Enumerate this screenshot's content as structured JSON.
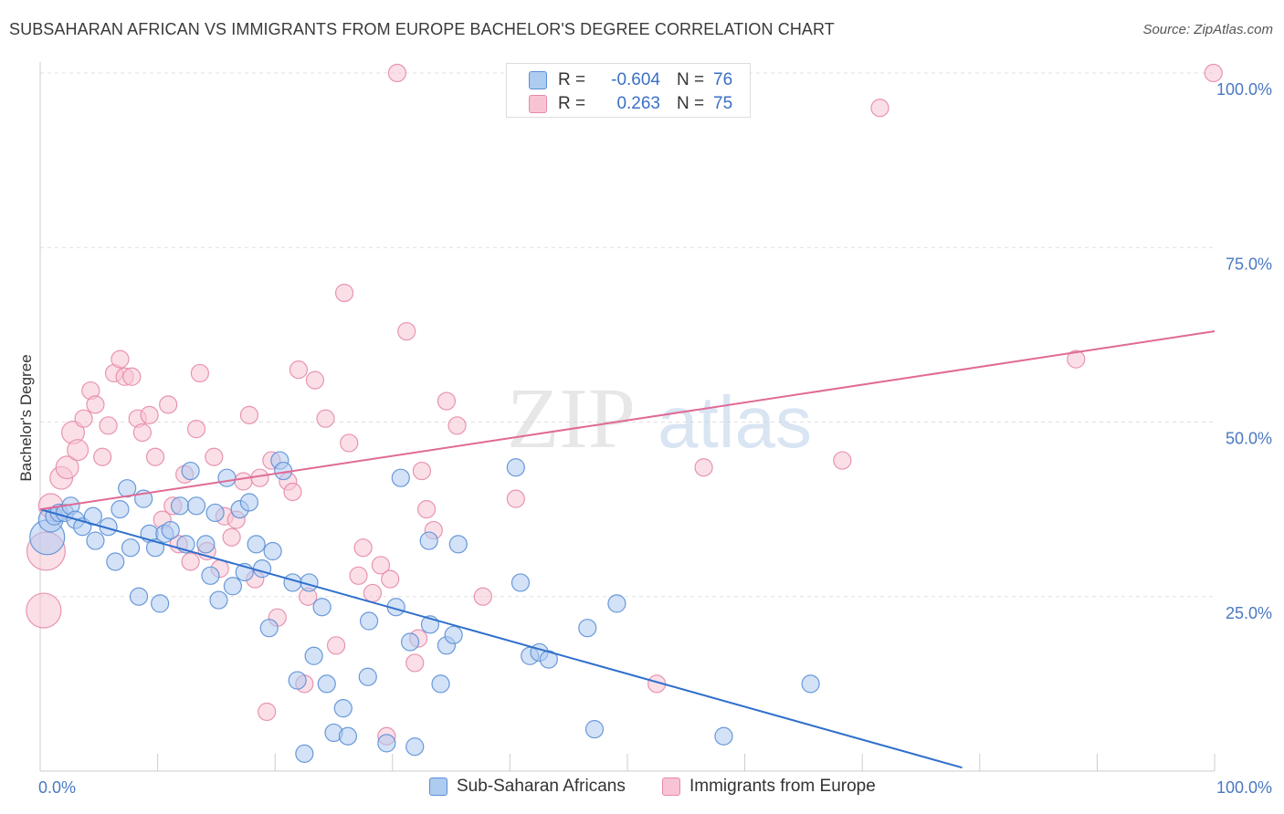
{
  "header": {
    "title": "SUBSAHARAN AFRICAN VS IMMIGRANTS FROM EUROPE BACHELOR'S DEGREE CORRELATION CHART",
    "source": "Source: ZipAtlas.com"
  },
  "watermark": {
    "zip": "ZIP",
    "atlas": "atlas"
  },
  "legend": {
    "rows": [
      {
        "r_label": "R =",
        "r_value": "-0.604",
        "n_label": "N =",
        "n_value": "76"
      },
      {
        "r_label": "R =",
        "r_value": "0.263",
        "n_label": "N =",
        "n_value": "75"
      }
    ]
  },
  "bottom_legend": {
    "items": [
      {
        "label": "Sub-Saharan Africans"
      },
      {
        "label": "Immigrants from Europe"
      }
    ]
  },
  "colors": {
    "blue_fill": "#aecbf0",
    "blue_stroke": "#5b8fd6",
    "blue_line": "#2f6fcc",
    "pink_fill": "#f8c4d4",
    "pink_stroke": "#e68aa8",
    "pink_line": "#e06a95",
    "tick_label": "#4a78c2",
    "grid": "#e0e0e0"
  },
  "chart_data": {
    "type": "scatter",
    "title": "SUBSAHARAN AFRICAN VS IMMIGRANTS FROM EUROPE BACHELOR'S DEGREE CORRELATION CHART",
    "xlabel": "",
    "ylabel": "Bachelor's Degree",
    "xlim": [
      0,
      100
    ],
    "ylim": [
      0,
      100
    ],
    "x_tick_labels": [
      "0.0%",
      "100.0%"
    ],
    "y_ticks": [
      {
        "value": 25,
        "label": "25.0%"
      },
      {
        "value": 50,
        "label": "50.0%"
      },
      {
        "value": 75,
        "label": "75.0%"
      },
      {
        "value": 100,
        "label": "100.0%"
      }
    ],
    "grid": true,
    "legend_position": "top-center",
    "series": [
      {
        "name": "Sub-Saharan Africans",
        "color": "#aecbf0",
        "r": -0.604,
        "n": 76,
        "trend": {
          "x": [
            0,
            78.5
          ],
          "y": [
            37.5,
            0.5
          ]
        },
        "points": [
          [
            0.6,
            33.5,
            2
          ],
          [
            0.9,
            36.0,
            1.4
          ],
          [
            1.2,
            36.5,
            1
          ],
          [
            1.6,
            37.0,
            1
          ],
          [
            2.1,
            37.0,
            1
          ],
          [
            2.6,
            38.0,
            1
          ],
          [
            3.0,
            36.0,
            1
          ],
          [
            3.6,
            35.0,
            1
          ],
          [
            4.5,
            36.5,
            1
          ],
          [
            4.7,
            33.0,
            1
          ],
          [
            5.8,
            35.0,
            1
          ],
          [
            6.4,
            30.0,
            1
          ],
          [
            6.8,
            37.5,
            1
          ],
          [
            7.4,
            40.5,
            1
          ],
          [
            7.7,
            32.0,
            1
          ],
          [
            8.4,
            25.0,
            1
          ],
          [
            8.8,
            39.0,
            1
          ],
          [
            9.3,
            34.0,
            1
          ],
          [
            9.8,
            32.0,
            1
          ],
          [
            10.2,
            24.0,
            1
          ],
          [
            10.6,
            34.0,
            1
          ],
          [
            11.1,
            34.5,
            1
          ],
          [
            11.9,
            38.0,
            1
          ],
          [
            12.4,
            32.5,
            1
          ],
          [
            12.8,
            43.0,
            1
          ],
          [
            13.3,
            38.0,
            1
          ],
          [
            14.1,
            32.5,
            1
          ],
          [
            14.5,
            28.0,
            1
          ],
          [
            14.9,
            37.0,
            1
          ],
          [
            15.2,
            24.5,
            1
          ],
          [
            15.9,
            42.0,
            1
          ],
          [
            16.4,
            26.5,
            1
          ],
          [
            17.0,
            37.5,
            1
          ],
          [
            17.4,
            28.5,
            1
          ],
          [
            17.8,
            38.5,
            1
          ],
          [
            18.4,
            32.5,
            1
          ],
          [
            18.9,
            29.0,
            1
          ],
          [
            19.5,
            20.5,
            1
          ],
          [
            19.8,
            31.5,
            1
          ],
          [
            20.4,
            44.5,
            1
          ],
          [
            20.7,
            43.0,
            1
          ],
          [
            21.5,
            27.0,
            1
          ],
          [
            21.9,
            13.0,
            1
          ],
          [
            22.5,
            2.5,
            1
          ],
          [
            22.9,
            27.0,
            1
          ],
          [
            23.3,
            16.5,
            1
          ],
          [
            24.0,
            23.5,
            1
          ],
          [
            24.4,
            12.5,
            1
          ],
          [
            25.0,
            5.5,
            1
          ],
          [
            25.8,
            9.0,
            1
          ],
          [
            26.2,
            5.0,
            1
          ],
          [
            27.9,
            13.5,
            1
          ],
          [
            28.0,
            21.5,
            1
          ],
          [
            29.5,
            4.0,
            1
          ],
          [
            30.3,
            23.5,
            1
          ],
          [
            30.7,
            42.0,
            1
          ],
          [
            31.5,
            18.5,
            1
          ],
          [
            31.9,
            3.5,
            1
          ],
          [
            33.1,
            33.0,
            1
          ],
          [
            33.2,
            21.0,
            1
          ],
          [
            34.1,
            12.5,
            1
          ],
          [
            34.6,
            18.0,
            1
          ],
          [
            35.2,
            19.5,
            1
          ],
          [
            35.6,
            32.5,
            1
          ],
          [
            40.5,
            43.5,
            1
          ],
          [
            40.9,
            27.0,
            1
          ],
          [
            41.7,
            16.5,
            1
          ],
          [
            42.5,
            17.0,
            1
          ],
          [
            43.3,
            16.0,
            1
          ],
          [
            46.6,
            20.5,
            1
          ],
          [
            47.2,
            6.0,
            1
          ],
          [
            49.1,
            24.0,
            1
          ],
          [
            58.2,
            5.0,
            1
          ],
          [
            65.6,
            12.5,
            1
          ]
        ]
      },
      {
        "name": "Immigrants from Europe",
        "color": "#f8c4d4",
        "r": 0.263,
        "n": 75,
        "trend": {
          "x": [
            0,
            100
          ],
          "y": [
            37.5,
            63.0
          ]
        },
        "points": [
          [
            0.3,
            23.0,
            2
          ],
          [
            0.5,
            31.5,
            2.2
          ],
          [
            0.9,
            38.0,
            1.4
          ],
          [
            1.8,
            42.0,
            1.3
          ],
          [
            2.3,
            43.5,
            1.3
          ],
          [
            2.8,
            48.5,
            1.3
          ],
          [
            3.2,
            46.0,
            1.2
          ],
          [
            3.7,
            50.5,
            1
          ],
          [
            4.3,
            54.5,
            1
          ],
          [
            4.7,
            52.5,
            1
          ],
          [
            5.3,
            45.0,
            1
          ],
          [
            5.8,
            49.5,
            1
          ],
          [
            6.3,
            57.0,
            1
          ],
          [
            6.8,
            59.0,
            1
          ],
          [
            7.2,
            56.5,
            1
          ],
          [
            7.8,
            56.5,
            1
          ],
          [
            8.3,
            50.5,
            1
          ],
          [
            8.7,
            48.5,
            1
          ],
          [
            9.3,
            51.0,
            1
          ],
          [
            9.8,
            45.0,
            1
          ],
          [
            10.4,
            36.0,
            1
          ],
          [
            10.9,
            52.5,
            1
          ],
          [
            11.3,
            38.0,
            1
          ],
          [
            11.8,
            32.5,
            1
          ],
          [
            12.3,
            42.5,
            1
          ],
          [
            12.8,
            30.0,
            1
          ],
          [
            13.3,
            49.0,
            1
          ],
          [
            13.6,
            57.0,
            1
          ],
          [
            14.2,
            31.5,
            1
          ],
          [
            14.8,
            45.0,
            1
          ],
          [
            15.3,
            29.0,
            1
          ],
          [
            15.7,
            36.5,
            1
          ],
          [
            16.3,
            33.5,
            1
          ],
          [
            16.7,
            36.0,
            1
          ],
          [
            17.3,
            41.5,
            1
          ],
          [
            17.8,
            51.0,
            1
          ],
          [
            18.3,
            27.5,
            1
          ],
          [
            18.7,
            42.0,
            1
          ],
          [
            19.3,
            8.5,
            1
          ],
          [
            19.7,
            44.5,
            1
          ],
          [
            20.2,
            22.0,
            1
          ],
          [
            21.1,
            41.5,
            1
          ],
          [
            21.5,
            40.0,
            1
          ],
          [
            22.0,
            57.5,
            1
          ],
          [
            22.5,
            12.5,
            1
          ],
          [
            22.8,
            25.0,
            1
          ],
          [
            23.4,
            56.0,
            1
          ],
          [
            24.3,
            50.5,
            1
          ],
          [
            25.2,
            18.0,
            1
          ],
          [
            25.9,
            68.5,
            1
          ],
          [
            26.3,
            47.0,
            1
          ],
          [
            27.1,
            28.0,
            1
          ],
          [
            27.5,
            32.0,
            1
          ],
          [
            28.3,
            25.5,
            1
          ],
          [
            29.0,
            29.5,
            1
          ],
          [
            29.5,
            5.0,
            1
          ],
          [
            29.8,
            27.5,
            1
          ],
          [
            30.4,
            100.0,
            1
          ],
          [
            31.2,
            63.0,
            1
          ],
          [
            31.9,
            15.5,
            1
          ],
          [
            32.2,
            19.0,
            1
          ],
          [
            32.5,
            43.0,
            1
          ],
          [
            32.9,
            37.5,
            1
          ],
          [
            33.5,
            34.5,
            1
          ],
          [
            34.6,
            53.0,
            1
          ],
          [
            35.5,
            49.5,
            1
          ],
          [
            37.7,
            25.0,
            1
          ],
          [
            40.5,
            39.0,
            1
          ],
          [
            52.5,
            12.5,
            1
          ],
          [
            56.5,
            43.5,
            1
          ],
          [
            68.3,
            44.5,
            1
          ],
          [
            71.5,
            95.0,
            1
          ],
          [
            88.2,
            59.0,
            1
          ],
          [
            99.9,
            100.0,
            1
          ]
        ]
      }
    ]
  }
}
